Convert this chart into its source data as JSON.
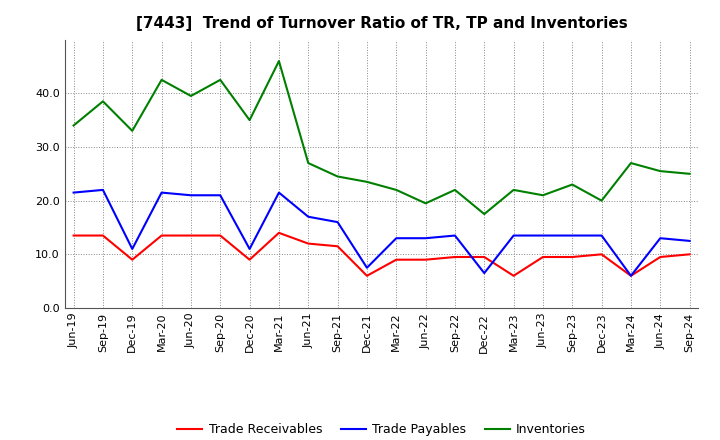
{
  "title": "[7443]  Trend of Turnover Ratio of TR, TP and Inventories",
  "x_labels": [
    "Jun-19",
    "Sep-19",
    "Dec-19",
    "Mar-20",
    "Jun-20",
    "Sep-20",
    "Dec-20",
    "Mar-21",
    "Jun-21",
    "Sep-21",
    "Dec-21",
    "Mar-22",
    "Jun-22",
    "Sep-22",
    "Dec-22",
    "Mar-23",
    "Jun-23",
    "Sep-23",
    "Dec-23",
    "Mar-24",
    "Jun-24",
    "Sep-24"
  ],
  "trade_receivables": [
    13.5,
    13.5,
    9.0,
    13.5,
    13.5,
    13.5,
    9.0,
    14.0,
    12.0,
    11.5,
    6.0,
    9.0,
    9.0,
    9.5,
    9.5,
    6.0,
    9.5,
    9.5,
    10.0,
    6.0,
    9.5,
    10.0
  ],
  "trade_payables": [
    21.5,
    22.0,
    11.0,
    21.5,
    21.0,
    21.0,
    11.0,
    21.5,
    17.0,
    16.0,
    7.5,
    13.0,
    13.0,
    13.5,
    6.5,
    13.5,
    13.5,
    13.5,
    13.5,
    6.0,
    13.0,
    12.5
  ],
  "inventories": [
    34.0,
    38.5,
    33.0,
    42.5,
    39.5,
    42.5,
    35.0,
    46.0,
    27.0,
    24.5,
    23.5,
    22.0,
    19.5,
    22.0,
    17.5,
    22.0,
    21.0,
    23.0,
    20.0,
    27.0,
    25.5,
    25.0
  ],
  "tr_color": "#ff0000",
  "tp_color": "#0000ff",
  "inv_color": "#008000",
  "ylim": [
    0,
    50
  ],
  "yticks": [
    0.0,
    10.0,
    20.0,
    30.0,
    40.0
  ],
  "background_color": "#ffffff",
  "grid_color": "#888888",
  "title_fontsize": 11,
  "tick_fontsize": 8,
  "legend_labels": [
    "Trade Receivables",
    "Trade Payables",
    "Inventories"
  ]
}
